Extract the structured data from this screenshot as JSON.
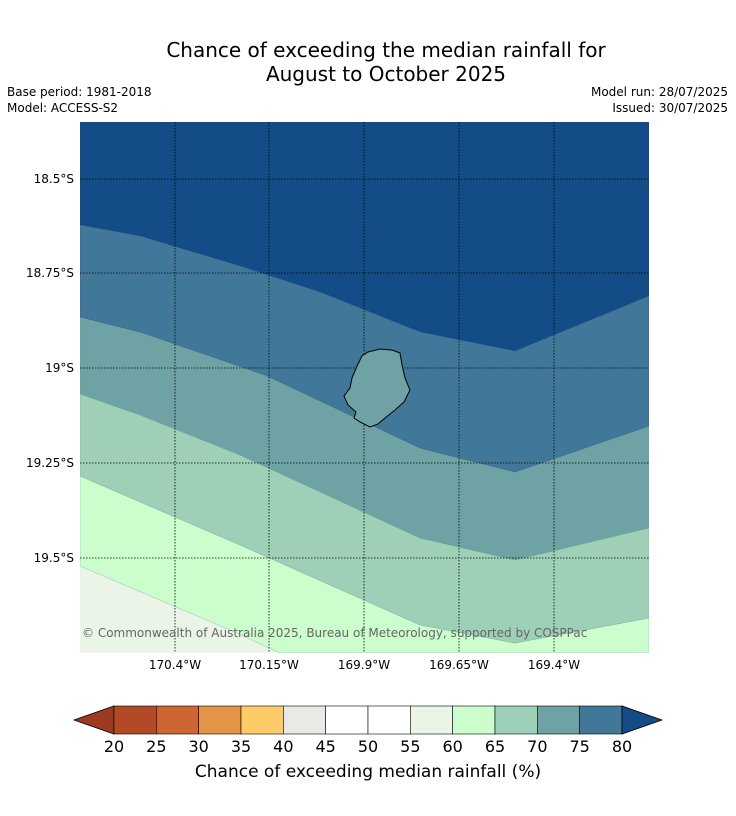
{
  "header": {
    "title_line1": "Chance of exceeding the median rainfall for",
    "title_line2": "August to October 2025",
    "base_period": "Base period: 1981-2018",
    "model": "Model: ACCESS-S2",
    "model_run": "Model run: 28/07/2025",
    "issued": "Issued: 30/07/2025"
  },
  "map": {
    "latitude_labels": [
      "18.5°S",
      "18.75°S",
      "19°S",
      "19.25°S",
      "19.5°S"
    ],
    "longitude_labels": [
      "170.4°W",
      "170.15°W",
      "169.9°W",
      "169.65°W",
      "169.4°W"
    ],
    "copyright": "© Commonwealth of Australia 2025, Bureau of Meteorology, supported by COSPPac",
    "land_feature": "island-outline"
  },
  "colorbar": {
    "label": "Chance of exceeding median rainfall (%)",
    "ticks": [
      "20",
      "25",
      "30",
      "35",
      "40",
      "45",
      "50",
      "55",
      "60",
      "65",
      "70",
      "75",
      "80"
    ],
    "colors": [
      "#9c3a1f",
      "#b34a26",
      "#cd6532",
      "#e39547",
      "#fecb68",
      "#ebe9e5",
      "#ffffff",
      "#ffffff",
      "#eaf5e8",
      "#ccfdcc",
      "#9ed0b8",
      "#6fa2a5",
      "#417899",
      "#134c86"
    ]
  }
}
